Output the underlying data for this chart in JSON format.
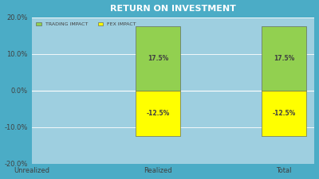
{
  "title": "RETURN ON INVESTMENT",
  "title_fontsize": 8,
  "legend_labels": [
    "TRADING IMPACT",
    "FEX IMPACT"
  ],
  "legend_colors": [
    "#92d050",
    "#ffff00"
  ],
  "categories": [
    "Unrealized",
    "Realized",
    "Total"
  ],
  "trading_impact": [
    0.0,
    17.5,
    17.5
  ],
  "fex_impact": [
    0.0,
    -12.5,
    -12.5
  ],
  "ylim": [
    -20.0,
    20.0
  ],
  "yticks": [
    -20.0,
    -10.0,
    0.0,
    10.0,
    20.0
  ],
  "bar_width": 0.35,
  "background_color": "#4bacc6",
  "plot_bg_color": "#9ecfe0",
  "grid_color": "#ffffff",
  "tick_label_color": "#404040",
  "bar_label_color": "#404040",
  "bar_label_fontsize": 5.5,
  "axis_label_fontsize": 6,
  "title_color": "#ffffff"
}
